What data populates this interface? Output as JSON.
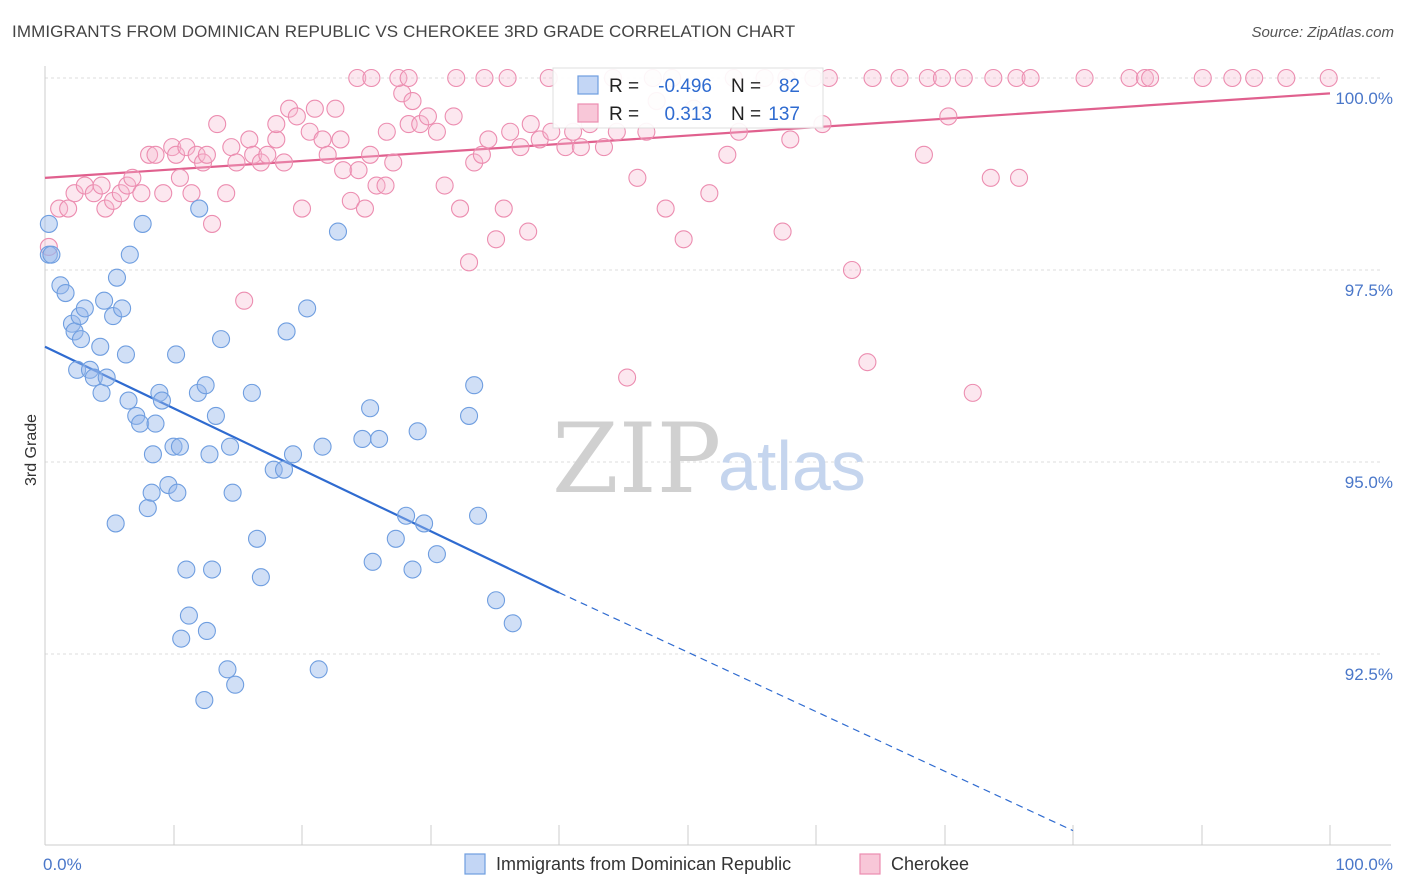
{
  "title": "IMMIGRANTS FROM DOMINICAN REPUBLIC VS CHEROKEE 3RD GRADE CORRELATION CHART",
  "source": "Source: ZipAtlas.com",
  "watermark": {
    "zip": "ZIP",
    "atlas": "atlas"
  },
  "colors": {
    "blue": "#6f9ee0",
    "blue_line": "#2f6bd0",
    "pink": "#ec8db0",
    "pink_line": "#e0608e",
    "tick_text": "#4a77c9"
  },
  "legend": {
    "r_label": "R =",
    "n_label": "N =",
    "series": [
      {
        "r": "-0.496",
        "n": "82"
      },
      {
        "r": "0.313",
        "n": "137"
      }
    ]
  },
  "chart_data": {
    "type": "scatter",
    "title": "IMMIGRANTS FROM DOMINICAN REPUBLIC VS CHEROKEE 3RD GRADE CORRELATION CHART",
    "xlabel": "",
    "ylabel": "3rd Grade",
    "xlim": [
      0,
      100
    ],
    "ylim": [
      90.2,
      100.5
    ],
    "x_tick_labels": [
      "0.0%",
      "100.0%"
    ],
    "y_ticks": [
      92.5,
      95.0,
      97.5,
      100.0
    ],
    "y_tick_labels": [
      "92.5%",
      "95.0%",
      "97.5%",
      "100.0%"
    ],
    "grid": "horizontal dashed",
    "legend_position": "top-center",
    "series": [
      {
        "name": "Immigrants from Dominican Republic",
        "color": "#6f9ee0",
        "trend": {
          "x": [
            0,
            40
          ],
          "y": [
            96.5,
            93.3
          ],
          "dashed_to": [
            80,
            90.2
          ]
        },
        "points": [
          [
            0.3,
            97.7
          ],
          [
            0.3,
            98.1
          ],
          [
            0.5,
            97.7
          ],
          [
            1.2,
            97.3
          ],
          [
            1.6,
            97.2
          ],
          [
            2.1,
            96.8
          ],
          [
            2.3,
            96.7
          ],
          [
            2.7,
            96.9
          ],
          [
            2.8,
            96.6
          ],
          [
            3.1,
            97.0
          ],
          [
            2.5,
            96.2
          ],
          [
            3.5,
            96.2
          ],
          [
            3.8,
            96.1
          ],
          [
            4.3,
            96.5
          ],
          [
            4.4,
            95.9
          ],
          [
            4.6,
            97.1
          ],
          [
            4.8,
            96.1
          ],
          [
            5.3,
            96.9
          ],
          [
            5.6,
            97.4
          ],
          [
            6.0,
            97.0
          ],
          [
            6.3,
            96.4
          ],
          [
            6.5,
            95.8
          ],
          [
            6.6,
            97.7
          ],
          [
            7.1,
            95.6
          ],
          [
            7.4,
            95.5
          ],
          [
            7.6,
            98.1
          ],
          [
            5.5,
            94.2
          ],
          [
            8.0,
            94.4
          ],
          [
            8.3,
            94.6
          ],
          [
            8.4,
            95.1
          ],
          [
            8.6,
            95.5
          ],
          [
            8.9,
            95.9
          ],
          [
            9.1,
            95.8
          ],
          [
            9.6,
            94.7
          ],
          [
            10.0,
            95.2
          ],
          [
            10.2,
            96.4
          ],
          [
            10.3,
            94.6
          ],
          [
            10.5,
            95.2
          ],
          [
            10.6,
            92.7
          ],
          [
            11.0,
            93.6
          ],
          [
            11.2,
            93.0
          ],
          [
            11.9,
            95.9
          ],
          [
            12.0,
            98.3
          ],
          [
            12.4,
            91.9
          ],
          [
            12.5,
            96.0
          ],
          [
            12.6,
            92.8
          ],
          [
            12.8,
            95.1
          ],
          [
            13.0,
            93.6
          ],
          [
            13.3,
            95.6
          ],
          [
            13.7,
            96.6
          ],
          [
            14.2,
            92.3
          ],
          [
            14.4,
            95.2
          ],
          [
            14.6,
            94.6
          ],
          [
            14.8,
            92.1
          ],
          [
            16.1,
            95.9
          ],
          [
            16.5,
            94.0
          ],
          [
            16.8,
            93.5
          ],
          [
            17.8,
            94.9
          ],
          [
            18.6,
            94.9
          ],
          [
            18.8,
            96.7
          ],
          [
            19.3,
            95.1
          ],
          [
            20.4,
            97.0
          ],
          [
            21.3,
            92.3
          ],
          [
            21.6,
            95.2
          ],
          [
            22.8,
            98.0
          ],
          [
            24.7,
            95.3
          ],
          [
            25.3,
            95.7
          ],
          [
            25.5,
            93.7
          ],
          [
            26.0,
            95.3
          ],
          [
            27.3,
            94.0
          ],
          [
            28.1,
            94.3
          ],
          [
            28.6,
            93.6
          ],
          [
            29.0,
            95.4
          ],
          [
            29.5,
            94.2
          ],
          [
            30.5,
            93.8
          ],
          [
            33.0,
            95.6
          ],
          [
            33.4,
            96.0
          ],
          [
            33.7,
            94.3
          ],
          [
            35.1,
            93.2
          ],
          [
            36.4,
            92.9
          ]
        ]
      },
      {
        "name": "Cherokee",
        "color": "#ec8db0",
        "trend": {
          "x": [
            0,
            100
          ],
          "y": [
            98.7,
            99.8
          ]
        },
        "points": [
          [
            0.3,
            97.8
          ],
          [
            1.1,
            98.3
          ],
          [
            1.8,
            98.3
          ],
          [
            2.3,
            98.5
          ],
          [
            3.1,
            98.6
          ],
          [
            3.8,
            98.5
          ],
          [
            4.4,
            98.6
          ],
          [
            4.7,
            98.3
          ],
          [
            5.3,
            98.4
          ],
          [
            5.9,
            98.5
          ],
          [
            6.4,
            98.6
          ],
          [
            6.8,
            98.7
          ],
          [
            7.5,
            98.5
          ],
          [
            8.1,
            99.0
          ],
          [
            8.6,
            99.0
          ],
          [
            9.2,
            98.5
          ],
          [
            9.9,
            99.1
          ],
          [
            10.2,
            99.0
          ],
          [
            10.5,
            98.7
          ],
          [
            11.0,
            99.1
          ],
          [
            11.4,
            98.5
          ],
          [
            11.8,
            99.0
          ],
          [
            12.3,
            98.9
          ],
          [
            12.6,
            99.0
          ],
          [
            13.0,
            98.1
          ],
          [
            13.4,
            99.4
          ],
          [
            14.1,
            98.5
          ],
          [
            14.5,
            99.1
          ],
          [
            14.9,
            98.9
          ],
          [
            15.5,
            97.1
          ],
          [
            15.9,
            99.2
          ],
          [
            16.2,
            99.0
          ],
          [
            16.8,
            98.9
          ],
          [
            17.3,
            99.0
          ],
          [
            18.0,
            99.2
          ],
          [
            18.6,
            98.9
          ],
          [
            19.0,
            99.6
          ],
          [
            19.6,
            99.5
          ],
          [
            20.0,
            98.3
          ],
          [
            20.6,
            99.3
          ],
          [
            21.0,
            99.6
          ],
          [
            21.6,
            99.2
          ],
          [
            22.0,
            99.0
          ],
          [
            22.6,
            99.6
          ],
          [
            23.2,
            98.8
          ],
          [
            23.8,
            98.4
          ],
          [
            24.4,
            98.8
          ],
          [
            24.9,
            98.3
          ],
          [
            25.3,
            99.0
          ],
          [
            25.8,
            98.6
          ],
          [
            26.5,
            98.6
          ],
          [
            27.1,
            98.9
          ],
          [
            27.8,
            99.8
          ],
          [
            28.3,
            99.4
          ],
          [
            28.6,
            99.7
          ],
          [
            29.2,
            99.4
          ],
          [
            29.8,
            99.5
          ],
          [
            30.5,
            99.3
          ],
          [
            31.1,
            98.6
          ],
          [
            31.8,
            99.5
          ],
          [
            32.3,
            98.3
          ],
          [
            33.0,
            97.6
          ],
          [
            33.4,
            98.9
          ],
          [
            34.0,
            99.0
          ],
          [
            34.5,
            99.2
          ],
          [
            35.1,
            97.9
          ],
          [
            35.7,
            98.3
          ],
          [
            36.2,
            99.3
          ],
          [
            37.0,
            99.1
          ],
          [
            37.6,
            98.0
          ],
          [
            38.5,
            99.2
          ],
          [
            39.4,
            99.3
          ],
          [
            40.5,
            99.1
          ],
          [
            41.1,
            99.3
          ],
          [
            41.7,
            99.1
          ],
          [
            42.4,
            99.4
          ],
          [
            43.5,
            99.1
          ],
          [
            44.5,
            99.3
          ],
          [
            45.3,
            96.1
          ],
          [
            46.1,
            98.7
          ],
          [
            46.8,
            99.3
          ],
          [
            47.6,
            99.7
          ],
          [
            48.3,
            98.3
          ],
          [
            49.7,
            97.9
          ],
          [
            50.5,
            99.6
          ],
          [
            51.7,
            98.5
          ],
          [
            53.1,
            99.0
          ],
          [
            54.0,
            99.3
          ],
          [
            57.4,
            98.0
          ],
          [
            58.0,
            99.2
          ],
          [
            60.5,
            99.4
          ],
          [
            64.0,
            96.3
          ],
          [
            68.4,
            99.0
          ],
          [
            70.3,
            99.5
          ],
          [
            72.2,
            95.9
          ],
          [
            73.6,
            98.7
          ],
          [
            75.8,
            98.7
          ],
          [
            24.3,
            100.0
          ],
          [
            25.4,
            100.0
          ],
          [
            27.5,
            100.0
          ],
          [
            28.3,
            100.0
          ],
          [
            32.0,
            100.0
          ],
          [
            34.2,
            100.0
          ],
          [
            36.0,
            100.0
          ],
          [
            39.2,
            100.0
          ],
          [
            44.2,
            100.0
          ],
          [
            47.3,
            100.0
          ],
          [
            48.8,
            100.0
          ],
          [
            53.6,
            100.0
          ],
          [
            56.0,
            100.0
          ],
          [
            57.7,
            100.0
          ],
          [
            59.8,
            100.0
          ],
          [
            61.0,
            100.0
          ],
          [
            64.4,
            100.0
          ],
          [
            66.5,
            100.0
          ],
          [
            68.7,
            100.0
          ],
          [
            69.8,
            100.0
          ],
          [
            71.5,
            100.0
          ],
          [
            73.8,
            100.0
          ],
          [
            75.6,
            100.0
          ],
          [
            76.7,
            100.0
          ],
          [
            80.9,
            100.0
          ],
          [
            84.4,
            100.0
          ],
          [
            85.6,
            100.0
          ],
          [
            86.0,
            100.0
          ],
          [
            90.1,
            100.0
          ],
          [
            92.4,
            100.0
          ],
          [
            94.1,
            100.0
          ],
          [
            96.6,
            100.0
          ],
          [
            99.9,
            100.0
          ],
          [
            23.0,
            99.2
          ],
          [
            18.0,
            99.4
          ],
          [
            26.6,
            99.3
          ],
          [
            37.8,
            99.4
          ],
          [
            62.8,
            97.5
          ]
        ]
      }
    ]
  }
}
